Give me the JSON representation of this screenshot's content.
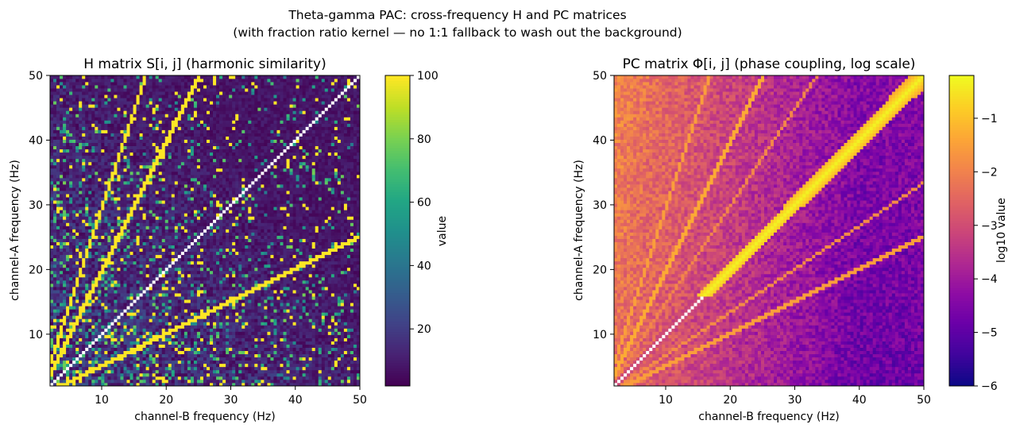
{
  "figure": {
    "title_line1": "Theta-gamma PAC: cross-frequency H and PC matrices",
    "title_line2": "(with fraction ratio kernel — no 1:1 fallback to wash out the background)"
  },
  "chart_data": [
    {
      "type": "heatmap",
      "title": "H matrix S[i, j] (harmonic similarity)",
      "xlabel": "channel-B frequency (Hz)",
      "ylabel": "channel-A frequency (Hz)",
      "xlim": [
        2,
        50
      ],
      "ylim": [
        2,
        50
      ],
      "xticks": [
        10,
        20,
        30,
        40,
        50
      ],
      "yticks": [
        10,
        20,
        30,
        40,
        50
      ],
      "grid_step_hz": 0.5,
      "colormap": "viridis",
      "colorbar": {
        "label": "value",
        "range": [
          2,
          100
        ],
        "ticks": [
          20,
          40,
          60,
          80,
          100
        ]
      },
      "diagonal": "white",
      "bright_ridges": [
        {
          "ratio_a_over_b": 2,
          "value": 100
        },
        {
          "ratio_a_over_b": 3,
          "value": 100
        },
        {
          "ratio_a_over_b": 0.5,
          "value": 100
        }
      ],
      "background_value_range": [
        2,
        100
      ]
    },
    {
      "type": "heatmap",
      "title": "PC matrix Φ[i, j] (phase coupling, log scale)",
      "xlabel": "channel-B frequency (Hz)",
      "ylabel": "channel-A frequency (Hz)",
      "xlim": [
        2,
        50
      ],
      "ylim": [
        2,
        50
      ],
      "xticks": [
        10,
        20,
        30,
        40,
        50
      ],
      "yticks": [
        10,
        20,
        30,
        40,
        50
      ],
      "grid_step_hz": 0.5,
      "colormap": "plasma",
      "colorbar": {
        "label": "log10 value",
        "range": [
          -6,
          -0.2
        ],
        "ticks": [
          -6,
          -5,
          -4,
          -3,
          -2,
          -1
        ]
      },
      "diagonal": "white below 16 Hz, yellow above",
      "bright_ridges": [
        {
          "ratio_a_over_b": 1,
          "log10_value": -0.3
        },
        {
          "ratio_a_over_b": 2,
          "log10_value": -1.3
        },
        {
          "ratio_a_over_b": 3,
          "log10_value": -1.5
        },
        {
          "ratio_a_over_b": 0.5,
          "log10_value": -1.5
        },
        {
          "ratio_a_over_b": 0.667,
          "log10_value": -1.8
        },
        {
          "ratio_a_over_b": 1.5,
          "log10_value": -1.9
        }
      ],
      "background_log10_range": [
        -5.2,
        -1.8
      ]
    }
  ]
}
